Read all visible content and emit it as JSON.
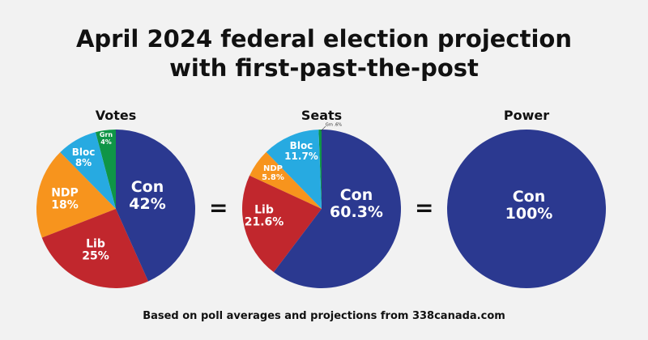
{
  "title_line1": "April 2024 federal election projection",
  "title_line2": "with first-past-the-post",
  "equals": "=",
  "footer": "Based on poll averages and projections from 338canada.com",
  "colors": {
    "Con": "#2b3990",
    "Lib": "#c1272d",
    "NDP": "#f7941d",
    "Bloc": "#27aae1",
    "Grn": "#0f9547"
  },
  "chart_data": [
    {
      "type": "pie",
      "title": "Votes",
      "start": "top",
      "direction": "clockwise",
      "slices": [
        {
          "party": "Con",
          "label": "42%",
          "value": 42
        },
        {
          "party": "Lib",
          "label": "25%",
          "value": 25
        },
        {
          "party": "NDP",
          "label": "18%",
          "value": 18
        },
        {
          "party": "Bloc",
          "label": "8%",
          "value": 8
        },
        {
          "party": "Grn",
          "label": "4%",
          "value": 4
        }
      ]
    },
    {
      "type": "pie",
      "title": "Seats",
      "start": "top",
      "direction": "clockwise",
      "slices": [
        {
          "party": "Con",
          "label": "60.3%",
          "value": 60.3
        },
        {
          "party": "Lib",
          "label": "21.6%",
          "value": 21.6
        },
        {
          "party": "NDP",
          "label": "5.8%",
          "value": 5.8
        },
        {
          "party": "Bloc",
          "label": "11.7%",
          "value": 11.7
        },
        {
          "party": "Grn",
          "label": ".6%",
          "value": 0.6
        }
      ]
    },
    {
      "type": "pie",
      "title": "Power",
      "start": "top",
      "direction": "clockwise",
      "slices": [
        {
          "party": "Con",
          "label": "100%",
          "value": 100
        }
      ]
    }
  ]
}
